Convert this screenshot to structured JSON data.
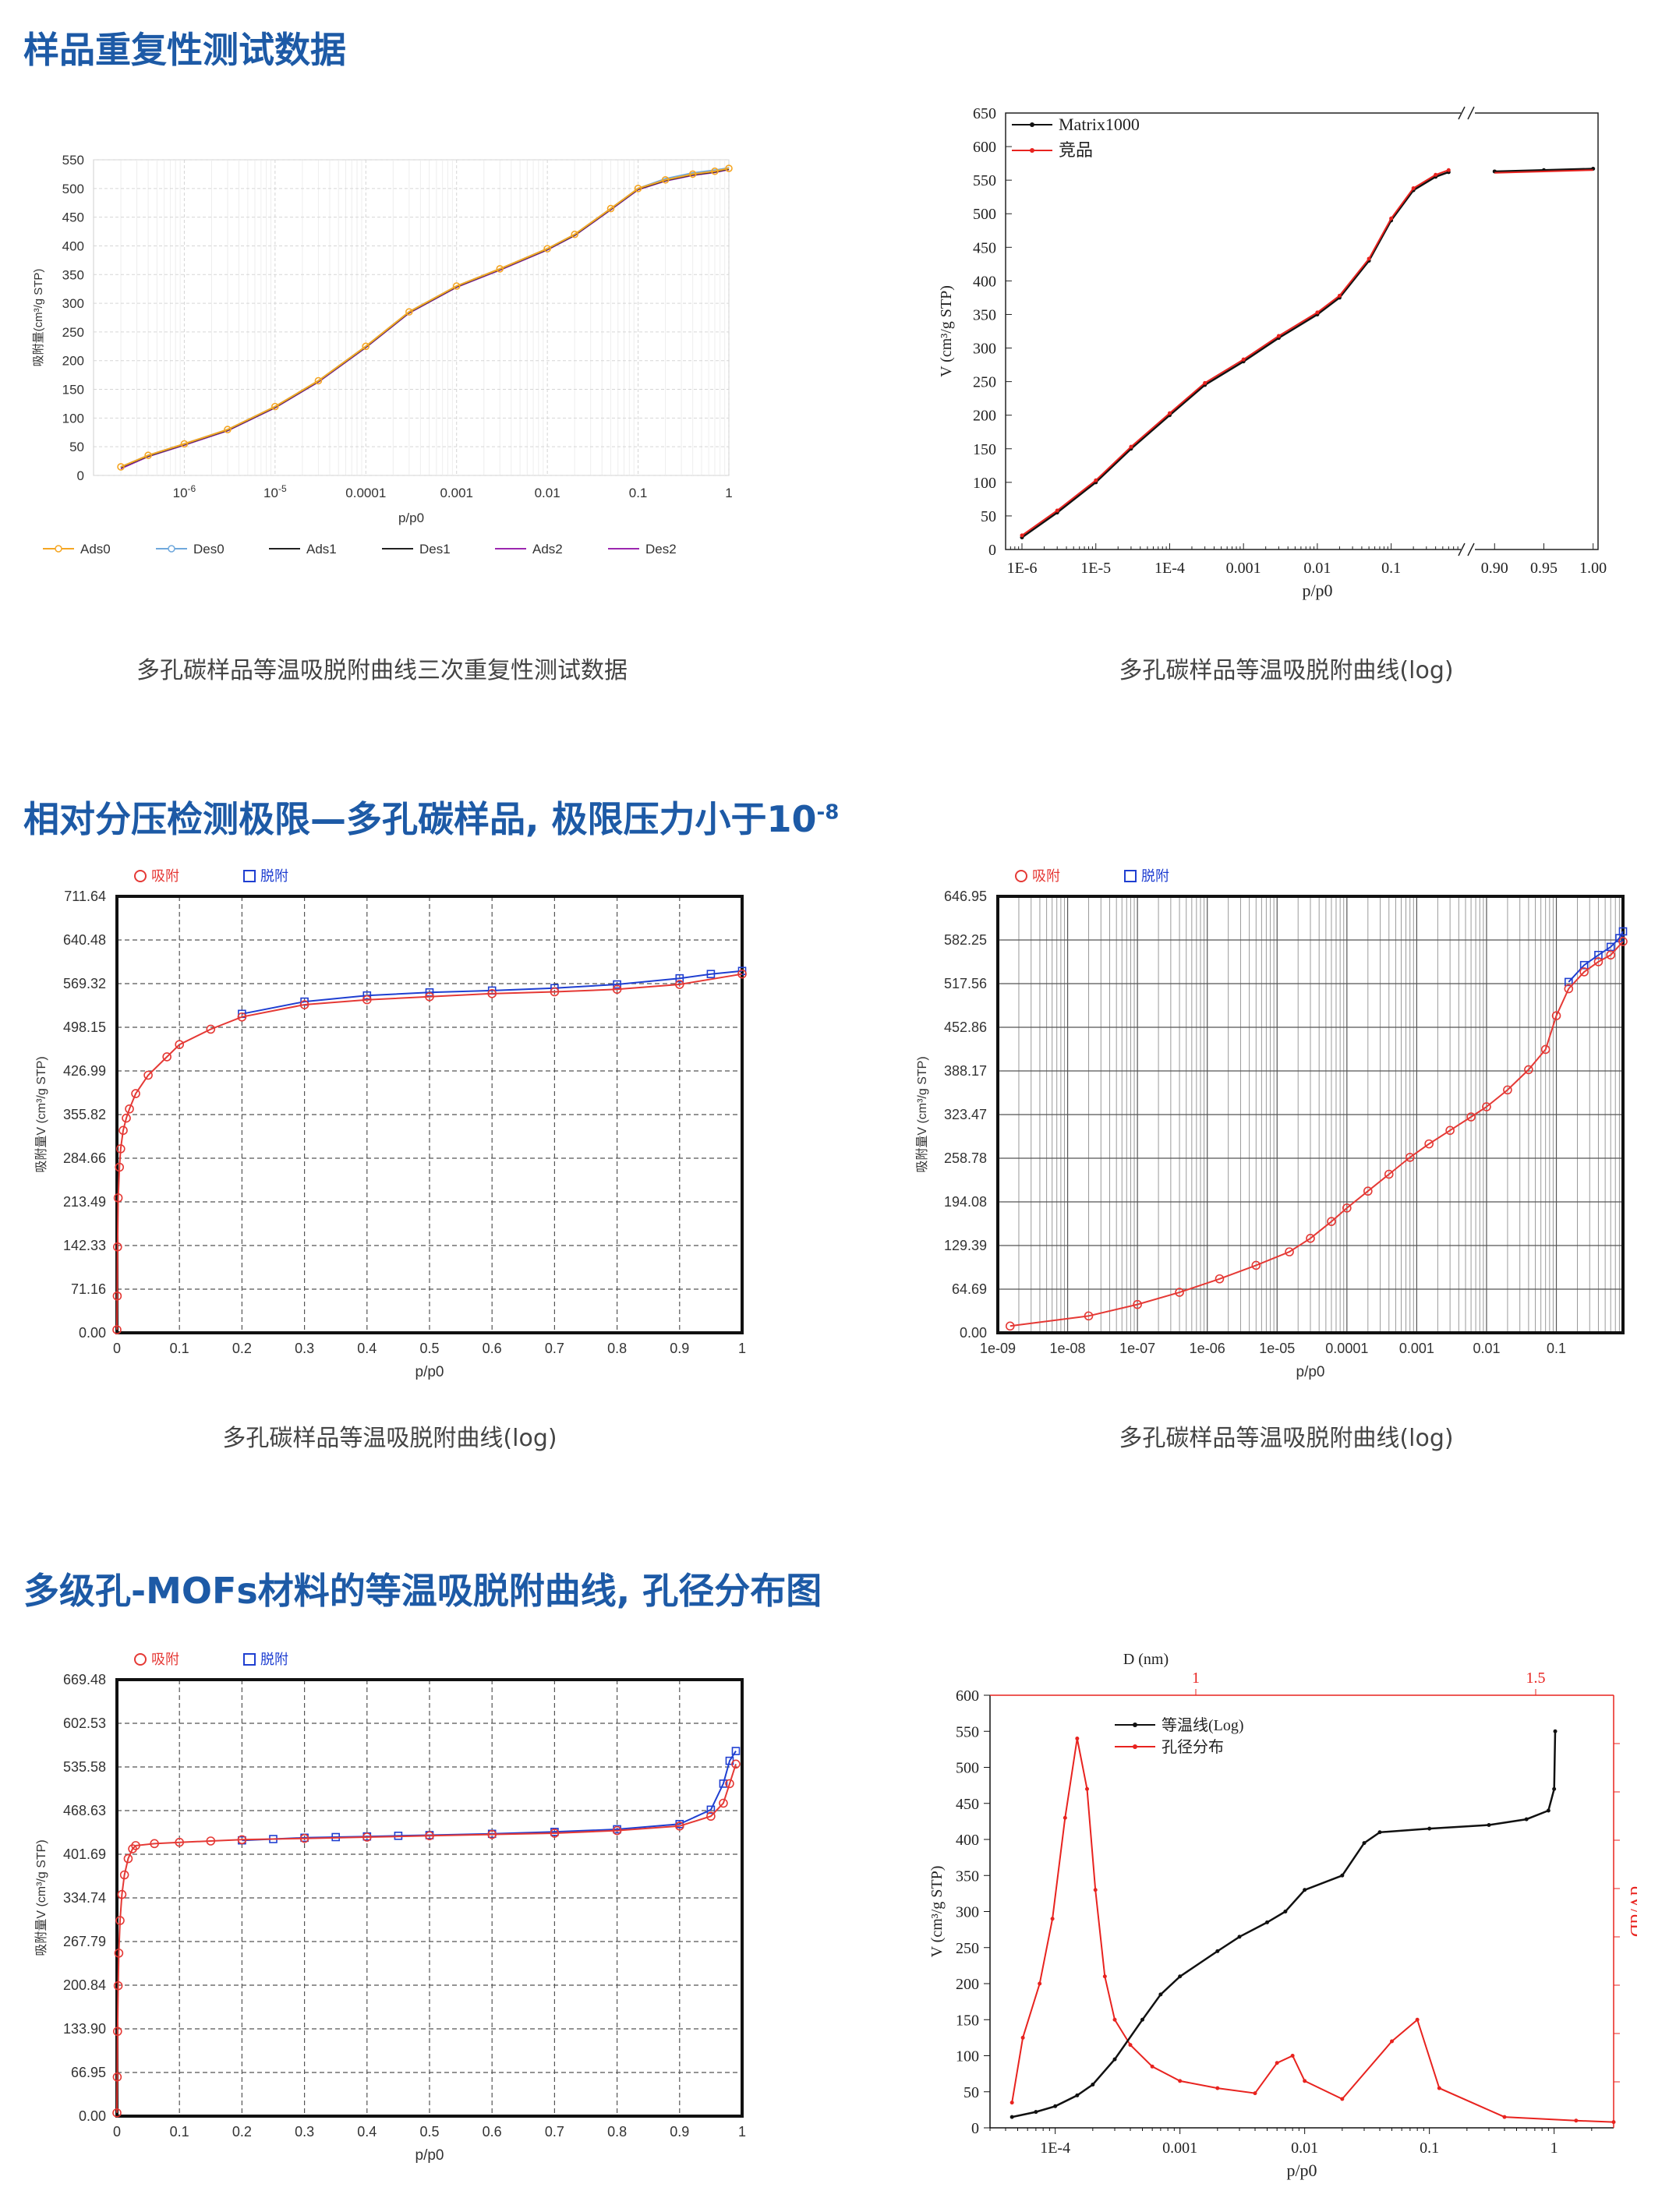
{
  "sections": [
    {
      "title": "样品重复性测试数据"
    },
    {
      "title": "相对分压检测极限—多孔碳样品, 极限压力小于10",
      "title_sup": "-8"
    },
    {
      "title": "多级孔-MOFs材料的等温吸脱附曲线, 孔径分布图"
    }
  ],
  "captions": [
    "多孔碳样品等温吸脱附曲线三次重复性测试数据",
    "多孔碳样品等温吸脱附曲线(log)",
    "多孔碳样品等温吸脱附曲线(log)",
    "多孔碳样品等温吸脱附曲线(log)"
  ],
  "chart_data": [
    {
      "id": "c1",
      "type": "line",
      "ylabel": "吸附量(cm³/g STP)",
      "xlabel": "p/p0",
      "x_scale": "log",
      "xlim": [
        1e-07,
        1
      ],
      "ylim": [
        0,
        550
      ],
      "x_ticks": [
        {
          "v": 1e-06,
          "label": "10",
          "sup": "-6"
        },
        {
          "v": 1e-05,
          "label": "10",
          "sup": "-5"
        },
        {
          "v": 0.0001,
          "label": "0.0001"
        },
        {
          "v": 0.001,
          "label": "0.001"
        },
        {
          "v": 0.01,
          "label": "0.01"
        },
        {
          "v": 0.1,
          "label": "0.1"
        },
        {
          "v": 1,
          "label": "1"
        }
      ],
      "y_ticks": [
        0,
        50,
        100,
        150,
        200,
        250,
        300,
        350,
        400,
        450,
        500,
        550
      ],
      "grid": true,
      "legend_position": "bottom",
      "legend": [
        {
          "name": "Ads0",
          "color": "#f5a623",
          "marker": "circle"
        },
        {
          "name": "Des0",
          "color": "#6fa8dc",
          "marker": "circle"
        },
        {
          "name": "Ads1",
          "color": "#222222",
          "marker": "none"
        },
        {
          "name": "Des1",
          "color": "#222222",
          "marker": "none"
        },
        {
          "name": "Ads2",
          "color": "#9c27b0",
          "marker": "none"
        },
        {
          "name": "Des2",
          "color": "#9c27b0",
          "marker": "none"
        }
      ],
      "x": [
        2e-07,
        4e-07,
        1e-06,
        3e-06,
        1e-05,
        3e-05,
        0.0001,
        0.0003,
        0.001,
        0.003,
        0.01,
        0.02,
        0.05,
        0.1,
        0.2,
        0.4,
        0.7,
        1
      ],
      "series": [
        {
          "name": "Ads0",
          "values": [
            15,
            35,
            55,
            80,
            120,
            165,
            225,
            285,
            330,
            360,
            395,
            420,
            465,
            500,
            515,
            525,
            530,
            535
          ]
        },
        {
          "name": "Des0",
          "values": [
            15,
            35,
            55,
            80,
            120,
            165,
            225,
            285,
            330,
            360,
            395,
            420,
            465,
            500,
            517,
            527,
            532,
            536
          ]
        },
        {
          "name": "Ads1",
          "values": [
            12,
            33,
            53,
            78,
            118,
            163,
            223,
            283,
            328,
            358,
            393,
            418,
            463,
            498,
            513,
            523,
            528,
            533
          ]
        },
        {
          "name": "Ads2",
          "values": [
            14,
            34,
            54,
            79,
            119,
            164,
            224,
            284,
            329,
            359,
            394,
            419,
            464,
            499,
            514,
            524,
            529,
            534
          ]
        }
      ]
    },
    {
      "id": "c2",
      "type": "line",
      "ylabel": "V (cm³/g STP)",
      "xlabel": "p/p0",
      "x_scale": "log-broken",
      "ylim": [
        0,
        650
      ],
      "x_ticks_log": [
        "1E-6",
        "1E-5",
        "1E-4",
        "0.001",
        "0.01",
        "0.1"
      ],
      "x_ticks_lin": [
        "0.90",
        "0.95",
        "1.00"
      ],
      "y_ticks": [
        0,
        50,
        100,
        150,
        200,
        250,
        300,
        350,
        400,
        450,
        500,
        550,
        600,
        650
      ],
      "legend_position": "top-left",
      "legend": [
        {
          "name": "Matrix1000",
          "color": "#111111"
        },
        {
          "name": "竞品",
          "color": "#e8231f"
        }
      ],
      "x_log": [
        1e-06,
        3e-06,
        1e-05,
        3e-05,
        0.0001,
        0.0003,
        0.001,
        0.003,
        0.01,
        0.02,
        0.05,
        0.1,
        0.2,
        0.4,
        0.6
      ],
      "y_log": [
        18,
        55,
        100,
        150,
        200,
        245,
        280,
        315,
        350,
        375,
        430,
        490,
        535,
        555,
        562
      ],
      "x_lin": [
        0.9,
        0.95,
        1.0
      ],
      "y_lin": [
        563,
        565,
        567
      ]
    },
    {
      "id": "c3",
      "type": "scatter",
      "ylabel": "吸附量V (cm³/g STP)",
      "xlabel": "p/p0",
      "x_scale": "linear",
      "xlim": [
        0,
        1
      ],
      "ylim": [
        0,
        711.64
      ],
      "x_ticks": [
        "0",
        "0.1",
        "0.2",
        "0.3",
        "0.4",
        "0.5",
        "0.6",
        "0.7",
        "0.8",
        "0.9",
        "1"
      ],
      "y_ticks": [
        "0.00",
        "71.16",
        "142.33",
        "213.49",
        "284.66",
        "355.82",
        "426.99",
        "498.15",
        "569.32",
        "640.48",
        "711.64"
      ],
      "grid": true,
      "legend_position": "top",
      "legend": [
        {
          "name": "吸附",
          "color": "#e53935",
          "marker": "circle"
        },
        {
          "name": "脱附",
          "color": "#1f3fd1",
          "marker": "square"
        }
      ],
      "ads": {
        "x": [
          0,
          0.0005,
          0.001,
          0.002,
          0.004,
          0.006,
          0.01,
          0.015,
          0.02,
          0.03,
          0.05,
          0.08,
          0.1,
          0.15,
          0.2,
          0.3,
          0.4,
          0.5,
          0.6,
          0.7,
          0.8,
          0.9,
          1.0
        ],
        "y": [
          5,
          60,
          140,
          220,
          270,
          300,
          330,
          350,
          365,
          390,
          420,
          450,
          470,
          495,
          515,
          535,
          543,
          548,
          553,
          556,
          560,
          568,
          585
        ]
      },
      "des": {
        "x": [
          1.0,
          0.95,
          0.9,
          0.8,
          0.7,
          0.6,
          0.5,
          0.4,
          0.3,
          0.2
        ],
        "y": [
          590,
          585,
          578,
          568,
          562,
          558,
          555,
          550,
          540,
          520
        ]
      }
    },
    {
      "id": "c4",
      "type": "scatter",
      "ylabel": "吸附量V (cm³/g STP)",
      "xlabel": "p/p0",
      "x_scale": "log",
      "xlim": [
        1e-09,
        0.9
      ],
      "ylim": [
        0,
        646.95
      ],
      "x_ticks": [
        "1e-09",
        "1e-08",
        "1e-07",
        "1e-06",
        "1e-05",
        "0.0001",
        "0.001",
        "0.01",
        "0.1"
      ],
      "y_ticks": [
        "0.00",
        "64.69",
        "129.39",
        "194.08",
        "258.78",
        "323.47",
        "388.17",
        "452.86",
        "517.56",
        "582.25",
        "646.95"
      ],
      "grid": true,
      "legend_position": "top",
      "legend": [
        {
          "name": "吸附",
          "color": "#e53935",
          "marker": "circle"
        },
        {
          "name": "脱附",
          "color": "#1f3fd1",
          "marker": "square"
        }
      ],
      "ads": {
        "x": [
          1.5e-09,
          2e-08,
          1e-07,
          4e-07,
          1.5e-06,
          5e-06,
          1.5e-05,
          3e-05,
          6e-05,
          0.0001,
          0.0002,
          0.0004,
          0.0008,
          0.0015,
          0.003,
          0.006,
          0.01,
          0.02,
          0.04,
          0.07,
          0.1,
          0.15,
          0.25,
          0.4,
          0.6,
          0.9
        ],
        "y": [
          10,
          25,
          42,
          60,
          80,
          100,
          120,
          140,
          165,
          185,
          210,
          235,
          260,
          280,
          300,
          320,
          335,
          360,
          390,
          420,
          470,
          510,
          535,
          550,
          560,
          580
        ]
      },
      "des": {
        "x": [
          0.9,
          0.8,
          0.6,
          0.4,
          0.25,
          0.15
        ],
        "y": [
          595,
          585,
          572,
          560,
          545,
          520
        ]
      }
    },
    {
      "id": "c5",
      "type": "scatter",
      "ylabel": "吸附量V (cm³/g STP)",
      "xlabel": "p/p0",
      "x_scale": "linear",
      "xlim": [
        0,
        1
      ],
      "ylim": [
        0,
        669.48
      ],
      "x_ticks": [
        "0",
        "0.1",
        "0.2",
        "0.3",
        "0.4",
        "0.5",
        "0.6",
        "0.7",
        "0.8",
        "0.9",
        "1"
      ],
      "y_ticks": [
        "0.00",
        "66.95",
        "133.90",
        "200.84",
        "267.79",
        "334.74",
        "401.69",
        "468.63",
        "535.58",
        "602.53",
        "669.48"
      ],
      "grid": true,
      "legend_position": "top",
      "legend": [
        {
          "name": "吸附",
          "color": "#e53935",
          "marker": "circle"
        },
        {
          "name": "脱附",
          "color": "#1f3fd1",
          "marker": "square"
        }
      ],
      "ads": {
        "x": [
          0,
          0.0005,
          0.001,
          0.002,
          0.003,
          0.005,
          0.008,
          0.012,
          0.018,
          0.025,
          0.03,
          0.06,
          0.1,
          0.15,
          0.2,
          0.3,
          0.4,
          0.5,
          0.6,
          0.7,
          0.8,
          0.9,
          0.95,
          0.97,
          0.98,
          0.99
        ],
        "y": [
          5,
          60,
          130,
          200,
          250,
          300,
          340,
          370,
          395,
          410,
          415,
          418,
          420,
          422,
          424,
          426,
          428,
          430,
          432,
          434,
          438,
          445,
          460,
          480,
          510,
          540
        ]
      },
      "des": {
        "x": [
          0.99,
          0.98,
          0.97,
          0.95,
          0.9,
          0.8,
          0.7,
          0.6,
          0.5,
          0.45,
          0.4,
          0.35,
          0.3,
          0.25,
          0.2
        ],
        "y": [
          560,
          545,
          510,
          470,
          448,
          440,
          436,
          433,
          431,
          430,
          429,
          428,
          427,
          425,
          423
        ]
      }
    },
    {
      "id": "c6",
      "type": "line",
      "ylabel": "V (cm³/g STP)",
      "xlabel": "p/p0",
      "x2label": "D (nm)",
      "y2label": "dV/dD",
      "x_scale": "log",
      "xlim": [
        3e-05,
        3
      ],
      "ylim": [
        0,
        600
      ],
      "x_ticks": [
        "1E-4",
        "0.001",
        "0.01",
        "0.1",
        "1"
      ],
      "x2_ticks": [
        "1",
        "1.5"
      ],
      "y_ticks": [
        0,
        50,
        100,
        150,
        200,
        250,
        300,
        350,
        400,
        450,
        500,
        550,
        600
      ],
      "legend_position": "top-left",
      "legend": [
        {
          "name": "等温线(Log)",
          "color": "#111111"
        },
        {
          "name": "孔径分布",
          "color": "#e8231f"
        }
      ],
      "isotherm": {
        "x": [
          4.5e-05,
          7e-05,
          0.0001,
          0.00015,
          0.0002,
          0.0003,
          0.0005,
          0.0007,
          0.001,
          0.002,
          0.003,
          0.005,
          0.007,
          0.01,
          0.02,
          0.03,
          0.04,
          0.1,
          0.3,
          0.6,
          0.9,
          1.0,
          1.02
        ],
        "y": [
          15,
          22,
          30,
          45,
          60,
          95,
          150,
          185,
          210,
          245,
          265,
          285,
          300,
          330,
          350,
          395,
          410,
          415,
          420,
          428,
          440,
          470,
          550
        ]
      },
      "pore_dist": {
        "x": [
          4.5e-05,
          5.5e-05,
          7.5e-05,
          9.5e-05,
          0.00012,
          0.00015,
          0.00018,
          0.00021,
          0.00025,
          0.0003,
          0.0004,
          0.0006,
          0.001,
          0.002,
          0.004,
          0.006,
          0.008,
          0.01,
          0.02,
          0.05,
          0.08,
          0.12,
          0.4,
          1.5,
          3
        ],
        "y": [
          35,
          125,
          200,
          290,
          430,
          540,
          470,
          330,
          210,
          150,
          115,
          85,
          65,
          55,
          48,
          90,
          100,
          65,
          40,
          120,
          150,
          55,
          15,
          10,
          8
        ]
      }
    }
  ]
}
